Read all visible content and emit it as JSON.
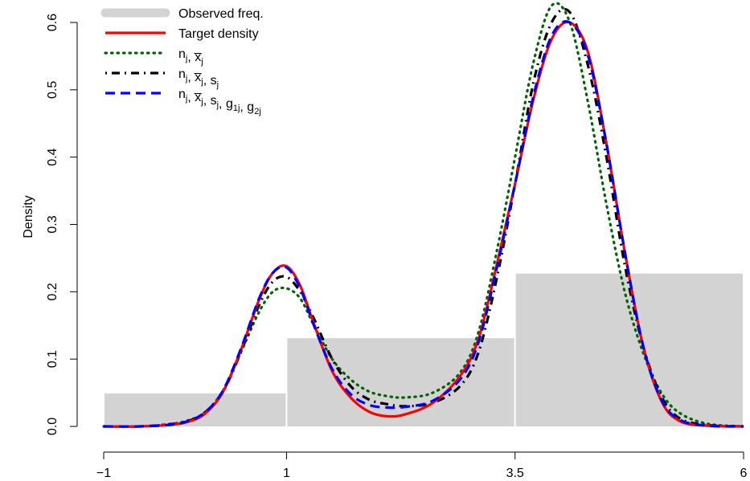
{
  "chart_data": {
    "type": "line",
    "title": "",
    "xlabel": "",
    "ylabel": "Density",
    "xlim": [
      -1,
      6
    ],
    "ylim": [
      0,
      0.6
    ],
    "x_ticks": [
      -1,
      1,
      3.5,
      6
    ],
    "x_tick_labels": [
      "−1",
      "1",
      "3.5",
      "6"
    ],
    "y_ticks": [
      0,
      0.1,
      0.2,
      0.3,
      0.4,
      0.5,
      0.6
    ],
    "y_tick_labels": [
      "0.0",
      "0.1",
      "0.2",
      "0.3",
      "0.4",
      "0.5",
      "0.6"
    ],
    "grid": false,
    "legend_position": "top-left",
    "histogram": {
      "name": "Observed freq.",
      "color": "#d3d3d3",
      "bins": [
        {
          "from": -1,
          "to": 1,
          "density": 0.049
        },
        {
          "from": 1,
          "to": 3.5,
          "density": 0.131
        },
        {
          "from": 3.5,
          "to": 6,
          "density": 0.227
        }
      ]
    },
    "series": [
      {
        "name": "Target density",
        "color": "#ff0000",
        "style": "solid",
        "x": [
          -1,
          -0.6,
          -0.3,
          -0.1,
          0.1,
          0.3,
          0.5,
          0.7,
          0.85,
          1.0,
          1.15,
          1.3,
          1.5,
          1.7,
          1.9,
          2.1,
          2.3,
          2.6,
          2.9,
          3.1,
          3.3,
          3.5,
          3.7,
          3.9,
          4.1,
          4.3,
          4.5,
          4.7,
          4.9,
          5.1,
          5.3,
          5.6,
          6.0
        ],
        "y": [
          0.0,
          0.0,
          0.002,
          0.006,
          0.018,
          0.05,
          0.113,
          0.188,
          0.228,
          0.238,
          0.209,
          0.152,
          0.082,
          0.043,
          0.022,
          0.015,
          0.018,
          0.035,
          0.075,
          0.13,
          0.24,
          0.36,
          0.485,
          0.575,
          0.6,
          0.555,
          0.42,
          0.26,
          0.12,
          0.038,
          0.008,
          0.001,
          0.0
        ]
      },
      {
        "name": "n_j, x̅_j",
        "color": "#006400",
        "style": "dotted",
        "x": [
          -1,
          -0.6,
          -0.3,
          -0.1,
          0.1,
          0.3,
          0.5,
          0.7,
          0.85,
          1.0,
          1.15,
          1.3,
          1.5,
          1.7,
          1.9,
          2.1,
          2.3,
          2.6,
          2.9,
          3.1,
          3.3,
          3.5,
          3.7,
          3.9,
          4.1,
          4.3,
          4.5,
          4.7,
          4.9,
          5.1,
          5.3,
          5.6,
          6.0
        ],
        "y": [
          0.0,
          0.0,
          0.003,
          0.008,
          0.02,
          0.052,
          0.11,
          0.17,
          0.2,
          0.205,
          0.19,
          0.15,
          0.1,
          0.07,
          0.052,
          0.045,
          0.043,
          0.05,
          0.08,
          0.14,
          0.26,
          0.4,
          0.54,
          0.625,
          0.6,
          0.48,
          0.33,
          0.2,
          0.11,
          0.05,
          0.02,
          0.004,
          0.0
        ]
      },
      {
        "name": "n_j, x̅_j, s_j",
        "color": "#000000",
        "style": "dotdash",
        "x": [
          -1,
          -0.6,
          -0.3,
          -0.1,
          0.1,
          0.3,
          0.5,
          0.7,
          0.85,
          1.0,
          1.15,
          1.3,
          1.5,
          1.7,
          1.9,
          2.1,
          2.3,
          2.6,
          2.9,
          3.1,
          3.3,
          3.5,
          3.7,
          3.9,
          4.1,
          4.3,
          4.5,
          4.7,
          4.9,
          5.1,
          5.3,
          5.6,
          6.0
        ],
        "y": [
          0.0,
          0.0,
          0.003,
          0.007,
          0.02,
          0.05,
          0.11,
          0.18,
          0.215,
          0.222,
          0.2,
          0.16,
          0.1,
          0.06,
          0.04,
          0.033,
          0.03,
          0.035,
          0.06,
          0.11,
          0.22,
          0.36,
          0.51,
          0.6,
          0.615,
          0.535,
          0.4,
          0.24,
          0.12,
          0.045,
          0.012,
          0.002,
          0.0
        ]
      },
      {
        "name": "n_j, x̅_j, s_j, g_1j, g_2j",
        "color": "#0000ff",
        "style": "dashed",
        "x": [
          -1,
          -0.6,
          -0.3,
          -0.1,
          0.1,
          0.3,
          0.5,
          0.7,
          0.85,
          1.0,
          1.15,
          1.3,
          1.5,
          1.7,
          1.9,
          2.1,
          2.3,
          2.6,
          2.9,
          3.1,
          3.3,
          3.5,
          3.7,
          3.9,
          4.1,
          4.3,
          4.5,
          4.7,
          4.9,
          5.1,
          5.3,
          5.6,
          6.0
        ],
        "y": [
          0.0,
          0.0,
          0.002,
          0.007,
          0.02,
          0.052,
          0.115,
          0.19,
          0.228,
          0.236,
          0.205,
          0.15,
          0.085,
          0.048,
          0.032,
          0.028,
          0.029,
          0.038,
          0.07,
          0.125,
          0.235,
          0.36,
          0.49,
          0.58,
          0.6,
          0.55,
          0.42,
          0.26,
          0.12,
          0.04,
          0.01,
          0.001,
          0.0
        ]
      }
    ],
    "legend": {
      "entries": [
        {
          "key": "hist",
          "label": "Observed freq."
        },
        {
          "key": "target",
          "label": "Target density"
        },
        {
          "key": "s1",
          "parts": [
            [
              "n",
              "j"
            ],
            ", ",
            [
              "x̅",
              "j"
            ]
          ]
        },
        {
          "key": "s2",
          "parts": [
            [
              "n",
              "j"
            ],
            ", ",
            [
              "x̅",
              "j"
            ],
            ", ",
            [
              "s",
              "j"
            ]
          ]
        },
        {
          "key": "s3",
          "parts": [
            [
              "n",
              "j"
            ],
            ", ",
            [
              "x̅",
              "j"
            ],
            ", ",
            [
              "s",
              "j"
            ],
            ", ",
            [
              "g",
              "1j"
            ],
            ", ",
            [
              "g",
              "2j"
            ]
          ]
        }
      ]
    }
  }
}
